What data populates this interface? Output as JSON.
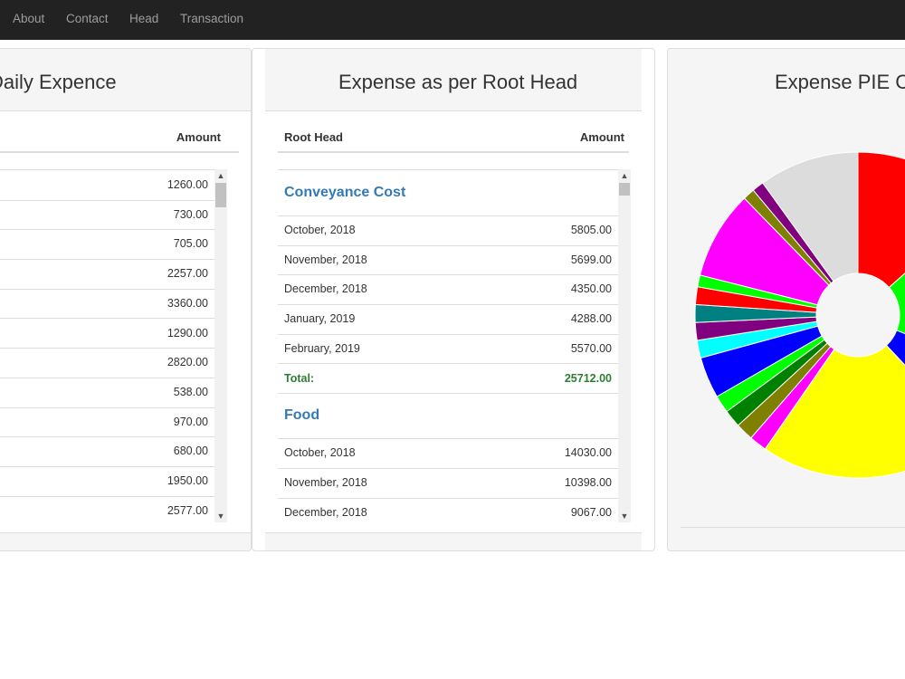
{
  "nav": {
    "items": [
      {
        "label": "About"
      },
      {
        "label": "Contact"
      },
      {
        "label": "Head"
      },
      {
        "label": "Transaction"
      }
    ]
  },
  "daily": {
    "title": "Daily Expence",
    "amount_header": "Amount",
    "amounts": [
      "1260.00",
      "730.00",
      "705.00",
      "2257.00",
      "3360.00",
      "1290.00",
      "2820.00",
      "538.00",
      "970.00",
      "680.00",
      "1950.00",
      "2577.00"
    ]
  },
  "roothead": {
    "title": "Expense as per Root Head",
    "col_root": "Root Head",
    "col_amount": "Amount",
    "groups": [
      {
        "name": "Conveyance Cost",
        "rows": [
          {
            "label": "October, 2018",
            "amount": "5805.00"
          },
          {
            "label": "November, 2018",
            "amount": "5699.00"
          },
          {
            "label": "December, 2018",
            "amount": "4350.00"
          },
          {
            "label": "January, 2019",
            "amount": "4288.00"
          },
          {
            "label": "February, 2019",
            "amount": "5570.00"
          }
        ],
        "total_label": "Total:",
        "total": "25712.00"
      },
      {
        "name": "Food",
        "rows": [
          {
            "label": "October, 2018",
            "amount": "14030.00"
          },
          {
            "label": "November, 2018",
            "amount": "10398.00"
          },
          {
            "label": "December, 2018",
            "amount": "9067.00"
          }
        ]
      }
    ]
  },
  "pie": {
    "title": "Expense PIE C",
    "colors": {
      "red": "#ff0000",
      "green": "#00ff00",
      "blue": "#0000ff",
      "yellow": "#ffff00",
      "magenta": "#ff00ff",
      "olive": "#808000",
      "darkgreen": "#008000",
      "cyan": "#00ffff",
      "purple": "#800080",
      "teal": "#008080",
      "lightgray": "#dcdcdc"
    }
  },
  "chart_data": {
    "type": "pie",
    "title": "Expense PIE C",
    "donut": true,
    "slices": [
      {
        "color": "#ff0000",
        "value": 11.5
      },
      {
        "color": "#00ff00",
        "value": 15
      },
      {
        "color": "#0000ff",
        "value": 6
      },
      {
        "color": "#ffff00",
        "value": 18.5
      },
      {
        "color": "#ff00ff",
        "value": 1.5
      },
      {
        "color": "#808000",
        "value": 1.5
      },
      {
        "color": "#008000",
        "value": 1.5
      },
      {
        "color": "#00ff00",
        "value": 1.5
      },
      {
        "color": "#0000ff",
        "value": 3.5
      },
      {
        "color": "#00ffff",
        "value": 1.5
      },
      {
        "color": "#800080",
        "value": 1.5
      },
      {
        "color": "#008080",
        "value": 1.5
      },
      {
        "color": "#ff0000",
        "value": 1.5
      },
      {
        "color": "#00ff00",
        "value": 1.0
      },
      {
        "color": "#ff00ff",
        "value": 7.5
      },
      {
        "color": "#808000",
        "value": 1.0
      },
      {
        "color": "#800080",
        "value": 1.0
      },
      {
        "color": "#dcdcdc",
        "value": 8.5
      }
    ]
  }
}
